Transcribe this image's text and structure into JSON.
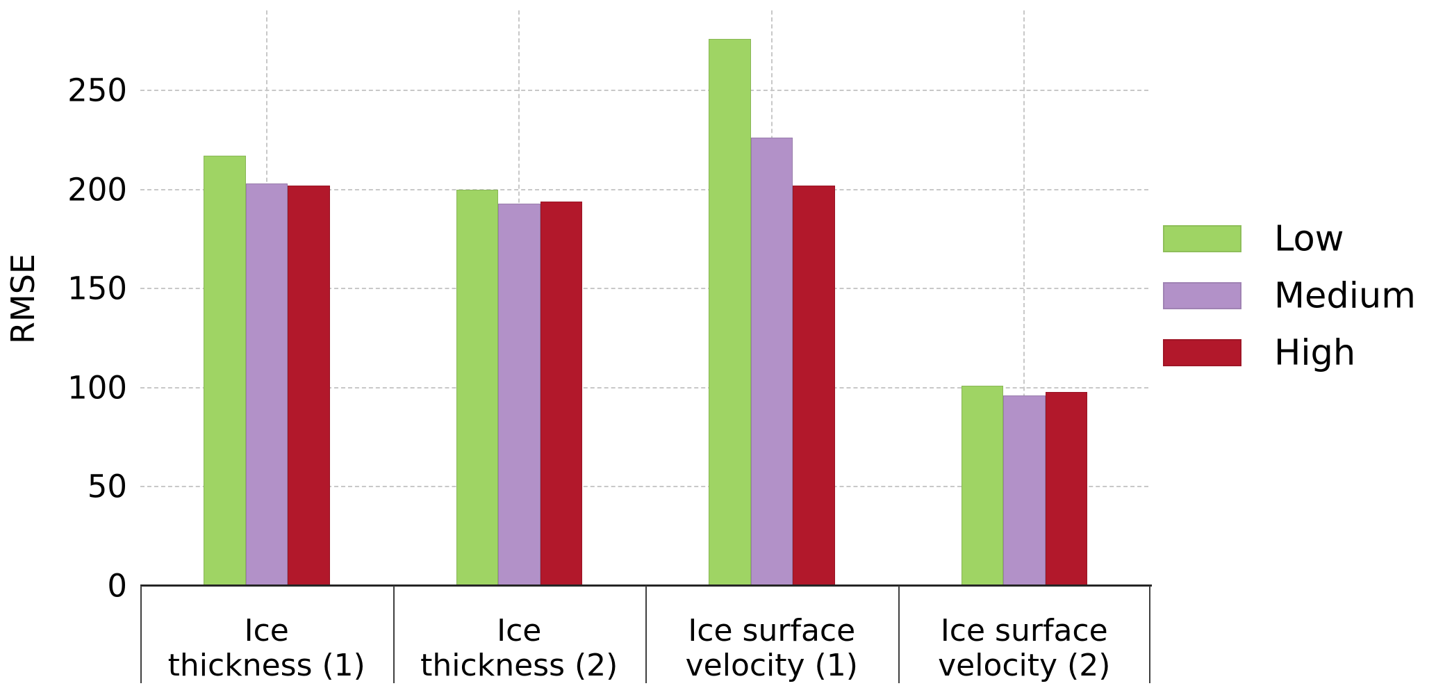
{
  "chart_data": {
    "type": "bar",
    "title": "",
    "xlabel": "",
    "ylabel": "RMSE",
    "categories": [
      "Ice\nthickness (1)",
      "Ice\nthickness (2)",
      "Ice surface\nvelocity (1)",
      "Ice surface\nvelocity (2)"
    ],
    "series": [
      {
        "name": "Low",
        "color": "#9fd464",
        "values": [
          217,
          200,
          276,
          101
        ]
      },
      {
        "name": "Medium",
        "color": "#b291c8",
        "values": [
          203,
          193,
          226,
          96
        ]
      },
      {
        "name": "High",
        "color": "#b2182b",
        "values": [
          202,
          194,
          202,
          98
        ]
      }
    ],
    "yticks": [
      0,
      50,
      100,
      150,
      200,
      250
    ],
    "ylim": [
      0,
      290
    ],
    "grid": {
      "horizontal": true,
      "vertical": true,
      "style": "dashed",
      "color": "#c8c8c8"
    },
    "legend": {
      "position": "right",
      "entries": [
        "Low",
        "Medium",
        "High"
      ]
    },
    "axis_color": "#262626",
    "text_color": "#000000"
  }
}
